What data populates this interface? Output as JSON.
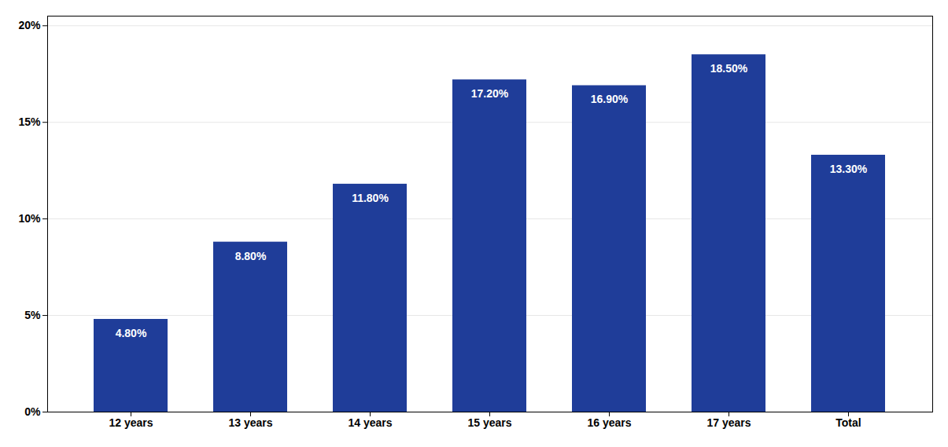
{
  "chart_data": {
    "type": "bar",
    "categories": [
      "12 years",
      "13 years",
      "14 years",
      "15 years",
      "16 years",
      "17 years",
      "Total"
    ],
    "values": [
      4.8,
      8.8,
      11.8,
      17.2,
      16.9,
      18.5,
      13.3
    ],
    "value_labels": [
      "4.80%",
      "8.80%",
      "11.80%",
      "17.20%",
      "16.90%",
      "18.50%",
      "13.30%"
    ],
    "data_labels": true,
    "color": "#1f3d99",
    "ylim": [
      0,
      20.5
    ],
    "yticks": [
      {
        "value": 0,
        "label": "0%"
      },
      {
        "value": 5,
        "label": "5%"
      },
      {
        "value": 10,
        "label": "10%"
      },
      {
        "value": 15,
        "label": "15%"
      },
      {
        "value": 20,
        "label": "20%"
      }
    ],
    "grid": true
  }
}
